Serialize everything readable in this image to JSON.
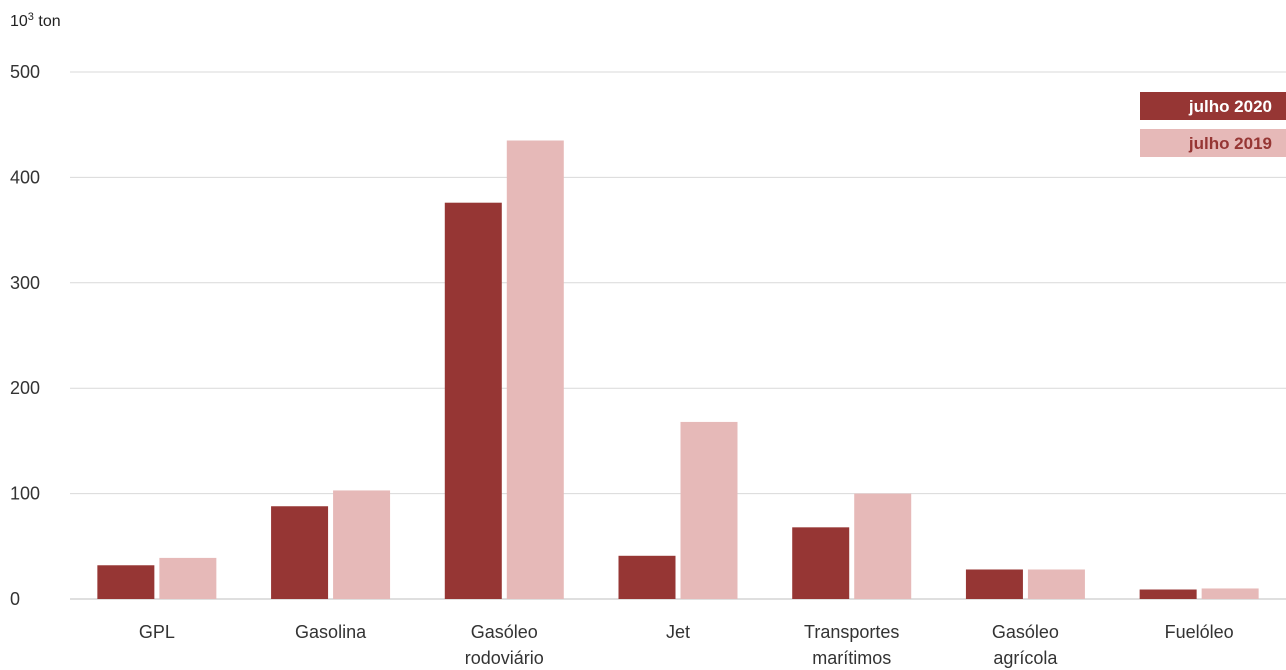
{
  "chart_data": {
    "type": "bar",
    "y_unit_label": "10³ ton",
    "ylim": [
      0,
      500
    ],
    "yticks": [
      0,
      100,
      200,
      300,
      400,
      500
    ],
    "grid": true,
    "legend_position": "top-right",
    "categories": [
      [
        "GPL"
      ],
      [
        "Gasolina"
      ],
      [
        "Gasóleo",
        "rodoviário"
      ],
      [
        "Jet"
      ],
      [
        "Transportes",
        "marítimos"
      ],
      [
        "Gasóleo",
        "agrícola"
      ],
      [
        "Fuelóleo"
      ]
    ],
    "series": [
      {
        "name": "julho 2020",
        "color": "#963634",
        "text_color": "#ffffff",
        "values": [
          32,
          88,
          376,
          41,
          68,
          28,
          9
        ]
      },
      {
        "name": "julho 2019",
        "color": "#e6b9b8",
        "text_color": "#963634",
        "values": [
          39,
          103,
          435,
          168,
          100,
          28,
          10
        ]
      }
    ]
  }
}
